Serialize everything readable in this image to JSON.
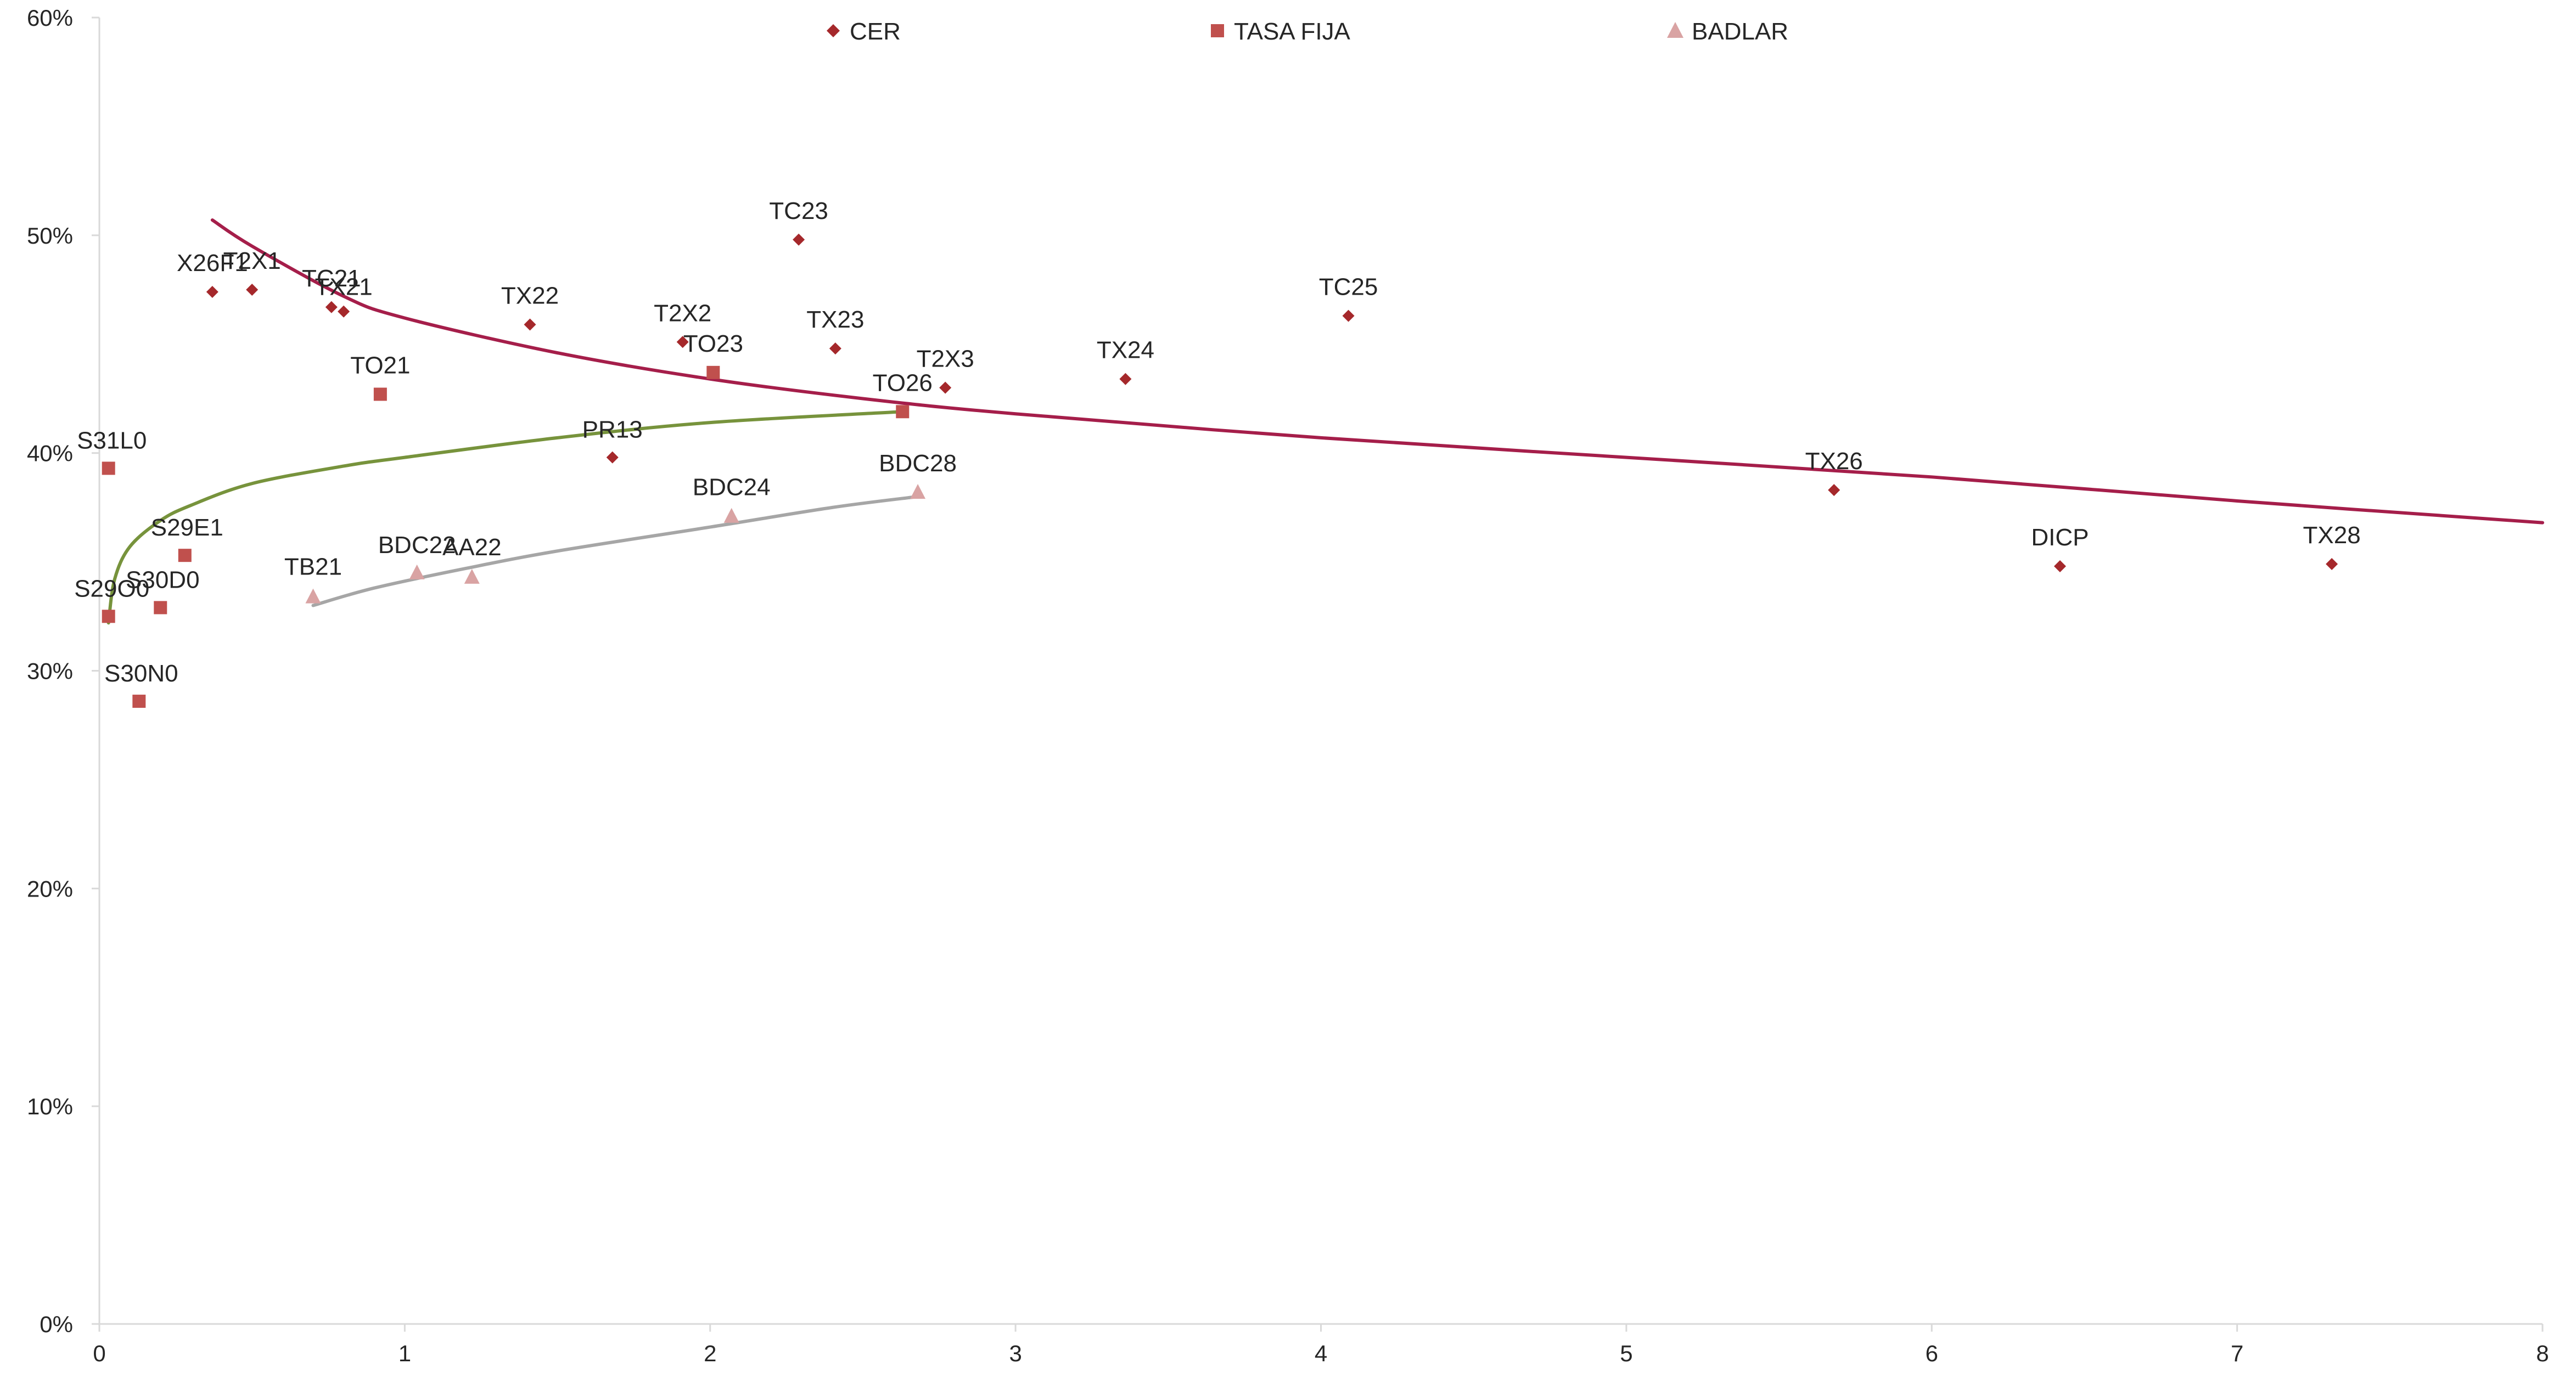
{
  "chart_data": {
    "type": "scatter",
    "xlim": [
      0,
      8
    ],
    "ylim": [
      0,
      0.6
    ],
    "x_ticks": [
      0,
      1,
      2,
      3,
      4,
      5,
      6,
      7,
      8
    ],
    "y_ticks": [
      0,
      0.1,
      0.2,
      0.3,
      0.4,
      0.5,
      0.6
    ],
    "x_tick_labels": [
      "0",
      "1",
      "2",
      "3",
      "4",
      "5",
      "6",
      "7",
      "8"
    ],
    "y_tick_labels": [
      "0%",
      "10%",
      "20%",
      "30%",
      "40%",
      "50%",
      "60%"
    ],
    "grid": false,
    "legend_position": "top-center",
    "series": [
      {
        "name": "CER",
        "marker": "diamond",
        "color": "#A5282B",
        "points": [
          {
            "label": "X26F1",
            "x": 0.37,
            "y": 0.474
          },
          {
            "label": "T2X1",
            "x": 0.5,
            "y": 0.475
          },
          {
            "label": "TC21",
            "x": 0.76,
            "y": 0.467
          },
          {
            "label": "TX21",
            "x": 0.8,
            "y": 0.465
          },
          {
            "label": "TX22",
            "x": 1.41,
            "y": 0.459
          },
          {
            "label": "PR13",
            "x": 1.68,
            "y": 0.398
          },
          {
            "label": "T2X2",
            "x": 1.91,
            "y": 0.451
          },
          {
            "label": "TC23",
            "x": 2.29,
            "y": 0.498
          },
          {
            "label": "TX23",
            "x": 2.41,
            "y": 0.448
          },
          {
            "label": "T2X3",
            "x": 2.77,
            "y": 0.43
          },
          {
            "label": "TX24",
            "x": 3.36,
            "y": 0.434
          },
          {
            "label": "TC25",
            "x": 4.09,
            "y": 0.463
          },
          {
            "label": "TX26",
            "x": 5.68,
            "y": 0.383
          },
          {
            "label": "DICP",
            "x": 6.42,
            "y": 0.348
          },
          {
            "label": "TX28",
            "x": 7.31,
            "y": 0.349
          }
        ]
      },
      {
        "name": "TASA FIJA",
        "marker": "square",
        "color": "#C0504D",
        "points": [
          {
            "label": "S31L0",
            "x": 0.03,
            "y": 0.393
          },
          {
            "label": "S29O0",
            "x": 0.03,
            "y": 0.325
          },
          {
            "label": "S30N0",
            "x": 0.13,
            "y": 0.286
          },
          {
            "label": "S30D0",
            "x": 0.2,
            "y": 0.329
          },
          {
            "label": "S29E1",
            "x": 0.28,
            "y": 0.353
          },
          {
            "label": "TO21",
            "x": 0.92,
            "y": 0.427
          },
          {
            "label": "TO23",
            "x": 2.01,
            "y": 0.437
          },
          {
            "label": "TO26",
            "x": 2.63,
            "y": 0.419
          }
        ]
      },
      {
        "name": "BADLAR",
        "marker": "triangle",
        "color": "#D9A3A3",
        "points": [
          {
            "label": "TB21",
            "x": 0.7,
            "y": 0.334
          },
          {
            "label": "BDC22",
            "x": 1.04,
            "y": 0.345
          },
          {
            "label": "AA22",
            "x": 1.22,
            "y": 0.343
          },
          {
            "label": "BDC24",
            "x": 2.07,
            "y": 0.371
          },
          {
            "label": "BDC28",
            "x": 2.68,
            "y": 0.382
          }
        ]
      }
    ],
    "trendlines": [
      {
        "series": "CER",
        "type": "power",
        "color": "#A51E4A",
        "x_from": 0.37,
        "x_to": 8,
        "points": [
          [
            0.37,
            0.507
          ],
          [
            0.5,
            0.495
          ],
          [
            0.8,
            0.472
          ],
          [
            1.0,
            0.462
          ],
          [
            1.5,
            0.446
          ],
          [
            2.0,
            0.434
          ],
          [
            2.5,
            0.425
          ],
          [
            3.0,
            0.418
          ],
          [
            4.0,
            0.407
          ],
          [
            5.0,
            0.398
          ],
          [
            6.0,
            0.389
          ],
          [
            7.0,
            0.378
          ],
          [
            8.0,
            0.368
          ]
        ]
      },
      {
        "series": "TASA FIJA",
        "type": "log",
        "color": "#77933C",
        "x_from": 0.03,
        "x_to": 2.63,
        "points": [
          [
            0.03,
            0.322
          ],
          [
            0.05,
            0.342
          ],
          [
            0.1,
            0.357
          ],
          [
            0.2,
            0.369
          ],
          [
            0.3,
            0.376
          ],
          [
            0.5,
            0.386
          ],
          [
            0.8,
            0.394
          ],
          [
            1.0,
            0.398
          ],
          [
            1.5,
            0.407
          ],
          [
            2.0,
            0.414
          ],
          [
            2.63,
            0.419
          ]
        ]
      },
      {
        "series": "BADLAR",
        "type": "log",
        "color": "#A6A6A6",
        "x_from": 0.7,
        "x_to": 2.68,
        "points": [
          [
            0.7,
            0.33
          ],
          [
            0.9,
            0.338
          ],
          [
            1.2,
            0.347
          ],
          [
            1.5,
            0.355
          ],
          [
            2.0,
            0.366
          ],
          [
            2.4,
            0.375
          ],
          [
            2.68,
            0.38
          ]
        ]
      }
    ]
  }
}
